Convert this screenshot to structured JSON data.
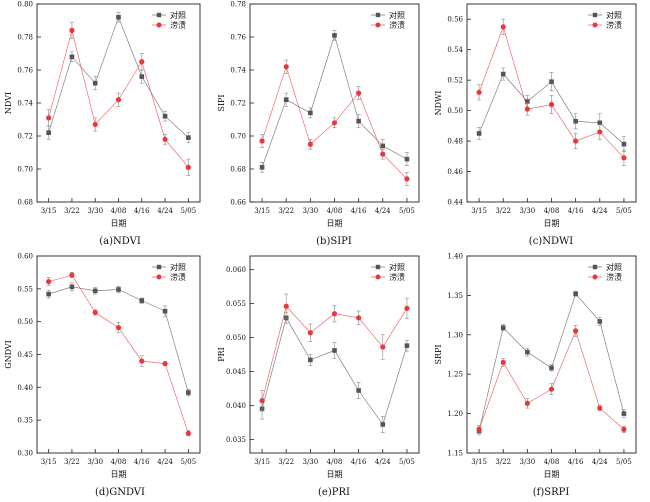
{
  "legend_labels": [
    "对照",
    "涝渍"
  ],
  "colors": {
    "control": "#555555",
    "flood": "#e8383d",
    "axis": "#222222"
  },
  "chart_data": [
    {
      "type": "line",
      "caption": "(a)NDVI",
      "xlabel": "日期",
      "ylabel": "NDVI",
      "categories": [
        "3/15",
        "3/22",
        "3/30",
        "4/08",
        "4/16",
        "4/24",
        "5/05"
      ],
      "ylim": [
        0.68,
        0.8
      ],
      "yticks": [
        "0.68",
        "0.70",
        "0.72",
        "0.74",
        "0.76",
        "0.78",
        "0.80"
      ],
      "legend": "top-right",
      "series": [
        {
          "name": "对照",
          "values": [
            0.722,
            0.768,
            0.752,
            0.792,
            0.756,
            0.732,
            0.719
          ],
          "errors": [
            0.004,
            0.003,
            0.004,
            0.003,
            0.004,
            0.003,
            0.003
          ]
        },
        {
          "name": "涝渍",
          "values": [
            0.731,
            0.784,
            0.727,
            0.742,
            0.765,
            0.718,
            0.701
          ],
          "errors": [
            0.005,
            0.005,
            0.004,
            0.004,
            0.005,
            0.003,
            0.005
          ]
        }
      ]
    },
    {
      "type": "line",
      "caption": "(b)SIPI",
      "xlabel": "日期",
      "ylabel": "SIPI",
      "categories": [
        "3/15",
        "3/22",
        "3/30",
        "4/08",
        "4/16",
        "4/24",
        "5/05"
      ],
      "ylim": [
        0.66,
        0.78
      ],
      "yticks": [
        "0.66",
        "0.68",
        "0.70",
        "0.72",
        "0.74",
        "0.76",
        "0.78"
      ],
      "legend": "top-right",
      "series": [
        {
          "name": "对照",
          "values": [
            0.681,
            0.722,
            0.714,
            0.761,
            0.709,
            0.694,
            0.686
          ],
          "errors": [
            0.003,
            0.004,
            0.003,
            0.003,
            0.004,
            0.004,
            0.004
          ]
        },
        {
          "name": "涝渍",
          "values": [
            0.697,
            0.742,
            0.695,
            0.708,
            0.726,
            0.689,
            0.674
          ],
          "errors": [
            0.004,
            0.004,
            0.003,
            0.003,
            0.004,
            0.003,
            0.004
          ]
        }
      ]
    },
    {
      "type": "line",
      "caption": "(c)NDWI",
      "xlabel": "日期",
      "ylabel": "NDWI",
      "categories": [
        "3/15",
        "3/22",
        "3/30",
        "4/08",
        "4/16",
        "4/24",
        "5/05"
      ],
      "ylim": [
        0.44,
        0.57
      ],
      "yticks": [
        "0.44",
        "0.46",
        "0.48",
        "0.50",
        "0.52",
        "0.54",
        "0.56"
      ],
      "legend": "top-right",
      "series": [
        {
          "name": "对照",
          "values": [
            0.485,
            0.524,
            0.506,
            0.519,
            0.493,
            0.492,
            0.478
          ],
          "errors": [
            0.004,
            0.004,
            0.004,
            0.006,
            0.005,
            0.006,
            0.005
          ]
        },
        {
          "name": "涝渍",
          "values": [
            0.512,
            0.555,
            0.501,
            0.504,
            0.48,
            0.486,
            0.469
          ],
          "errors": [
            0.005,
            0.005,
            0.004,
            0.006,
            0.005,
            0.005,
            0.005
          ]
        }
      ]
    },
    {
      "type": "line",
      "caption": "(d)GNDVI",
      "xlabel": "日期",
      "ylabel": "GNDVI",
      "categories": [
        "3/15",
        "3/22",
        "3/30",
        "4/08",
        "4/16",
        "4/24",
        "5/05"
      ],
      "ylim": [
        0.3,
        0.6
      ],
      "yticks": [
        "0.30",
        "0.35",
        "0.40",
        "0.45",
        "0.50",
        "0.55",
        "0.60"
      ],
      "legend": "top-right",
      "series": [
        {
          "name": "对照",
          "values": [
            0.542,
            0.553,
            0.547,
            0.549,
            0.532,
            0.516,
            0.392
          ],
          "errors": [
            0.006,
            0.006,
            0.005,
            0.005,
            0.004,
            0.008,
            0.005
          ]
        },
        {
          "name": "涝渍",
          "values": [
            0.561,
            0.571,
            0.514,
            0.491,
            0.44,
            0.436,
            0.33
          ],
          "errors": [
            0.006,
            0.004,
            0.004,
            0.008,
            0.008,
            0.003,
            0.004
          ]
        }
      ]
    },
    {
      "type": "line",
      "caption": "(e)PRI",
      "xlabel": "日期",
      "ylabel": "PRI",
      "categories": [
        "3/15",
        "3/22",
        "3/30",
        "4/08",
        "4/16",
        "4/24",
        "5/05"
      ],
      "ylim": [
        0.033,
        0.062
      ],
      "yticks": [
        "0.035",
        "0.040",
        "0.045",
        "0.050",
        "0.055",
        "0.060"
      ],
      "legend": "top-right",
      "series": [
        {
          "name": "对照",
          "values": [
            0.0395,
            0.0529,
            0.0467,
            0.0481,
            0.0422,
            0.0372,
            0.0488
          ],
          "errors": [
            0.0015,
            0.0008,
            0.0008,
            0.0012,
            0.0012,
            0.0012,
            0.0008
          ]
        },
        {
          "name": "涝渍",
          "values": [
            0.0407,
            0.0546,
            0.0507,
            0.0535,
            0.0529,
            0.0486,
            0.0543
          ],
          "errors": [
            0.0015,
            0.0018,
            0.0013,
            0.0012,
            0.001,
            0.0018,
            0.0015
          ]
        }
      ]
    },
    {
      "type": "line",
      "caption": "(f)SRPI",
      "xlabel": "日期",
      "ylabel": "SRPI",
      "categories": [
        "3/15",
        "3/22",
        "3/30",
        "4/08",
        "4/16",
        "4/24",
        "5/05"
      ],
      "ylim": [
        1.15,
        1.4
      ],
      "yticks": [
        "1.15",
        "1.20",
        "1.25",
        "1.30",
        "1.35",
        "1.40"
      ],
      "legend": "top-right",
      "series": [
        {
          "name": "对照",
          "values": [
            1.178,
            1.309,
            1.278,
            1.258,
            1.352,
            1.317,
            1.2
          ],
          "errors": [
            0.005,
            0.004,
            0.005,
            0.004,
            0.003,
            0.005,
            0.005
          ]
        },
        {
          "name": "涝渍",
          "values": [
            1.18,
            1.265,
            1.213,
            1.231,
            1.305,
            1.207,
            1.18
          ],
          "errors": [
            0.005,
            0.005,
            0.006,
            0.007,
            0.007,
            0.003,
            0.004
          ]
        }
      ]
    }
  ]
}
